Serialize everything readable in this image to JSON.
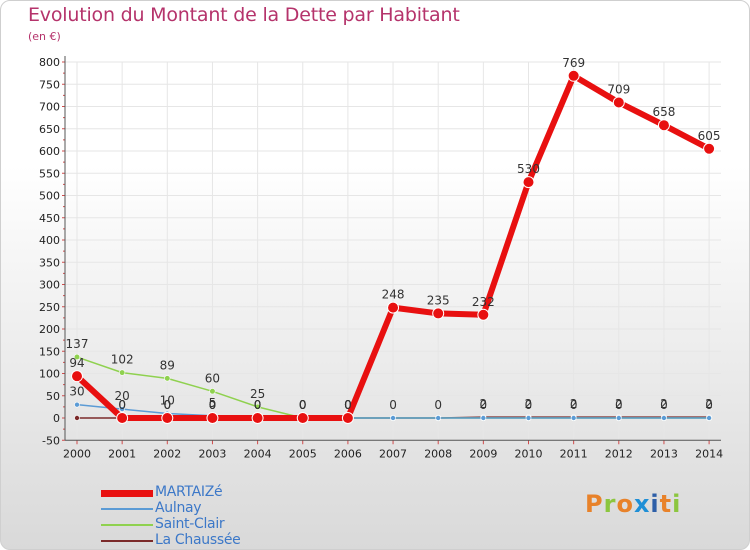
{
  "header": {
    "title": "Evolution du Montant de la Dette par Habitant",
    "subtitle": "(en €)"
  },
  "logo": {
    "text": "Proxiti",
    "letter_colors": [
      "#e8822a",
      "#8cc63f",
      "#e8822a",
      "#1f8fd6",
      "#2e5fa8",
      "#e8822a",
      "#8cc63f"
    ]
  },
  "chart_data": {
    "type": "line",
    "categories": [
      "2000",
      "2001",
      "2002",
      "2003",
      "2004",
      "2005",
      "2006",
      "2007",
      "2008",
      "2009",
      "2010",
      "2011",
      "2012",
      "2013",
      "2014"
    ],
    "ylim": [
      -50,
      800
    ],
    "yticks": [
      -50,
      0,
      50,
      100,
      150,
      200,
      250,
      300,
      350,
      400,
      450,
      500,
      550,
      600,
      650,
      700,
      750,
      800
    ],
    "grid": true,
    "legend_position": "bottom-left",
    "series": [
      {
        "name": "La Chaussée",
        "color": "#7b2a2a",
        "values": [
          0,
          0,
          0,
          0,
          0,
          0,
          0,
          0,
          0,
          2,
          2,
          2,
          2,
          2,
          2
        ],
        "labels": [
          "",
          "0",
          "0",
          "0",
          "",
          "",
          "",
          "0",
          "0",
          "2",
          "2",
          "2",
          "2",
          "2",
          "2"
        ]
      },
      {
        "name": "Saint-Clair",
        "color": "#8fd14f",
        "values": [
          137,
          102,
          89,
          60,
          25,
          0,
          0,
          0,
          0,
          0,
          0,
          0,
          0,
          0,
          0
        ],
        "labels": [
          "137",
          "102",
          "89",
          "60",
          "25",
          "0",
          "0",
          "",
          "",
          "0",
          "0",
          "0",
          "0",
          "0",
          "0"
        ]
      },
      {
        "name": "Aulnay",
        "color": "#5b9bd5",
        "values": [
          30,
          20,
          10,
          5,
          0,
          0,
          0,
          0,
          0,
          0,
          0,
          0,
          0,
          0,
          0
        ],
        "labels": [
          "30",
          "20",
          "10",
          "5",
          "0",
          "0",
          "0",
          "",
          "",
          "",
          "",
          "",
          "",
          "",
          ""
        ]
      },
      {
        "name": "MARTAIZé",
        "color": "#e81010",
        "values": [
          94,
          0,
          0,
          0,
          0,
          0,
          0,
          248,
          235,
          232,
          530,
          769,
          709,
          658,
          605
        ],
        "labels": [
          "94",
          "0",
          "0",
          "0",
          "0",
          "0",
          "0",
          "248",
          "235",
          "232",
          "530",
          "769",
          "709",
          "658",
          "605"
        ]
      }
    ]
  },
  "legend_items": [
    {
      "label": "MARTAIZé",
      "color": "#e81010",
      "thickness": 7
    },
    {
      "label": "Aulnay",
      "color": "#5b9bd5",
      "thickness": 2
    },
    {
      "label": "Saint-Clair",
      "color": "#8fd14f",
      "thickness": 2
    },
    {
      "label": "La Chaussée",
      "color": "#7b2a2a",
      "thickness": 2
    }
  ]
}
